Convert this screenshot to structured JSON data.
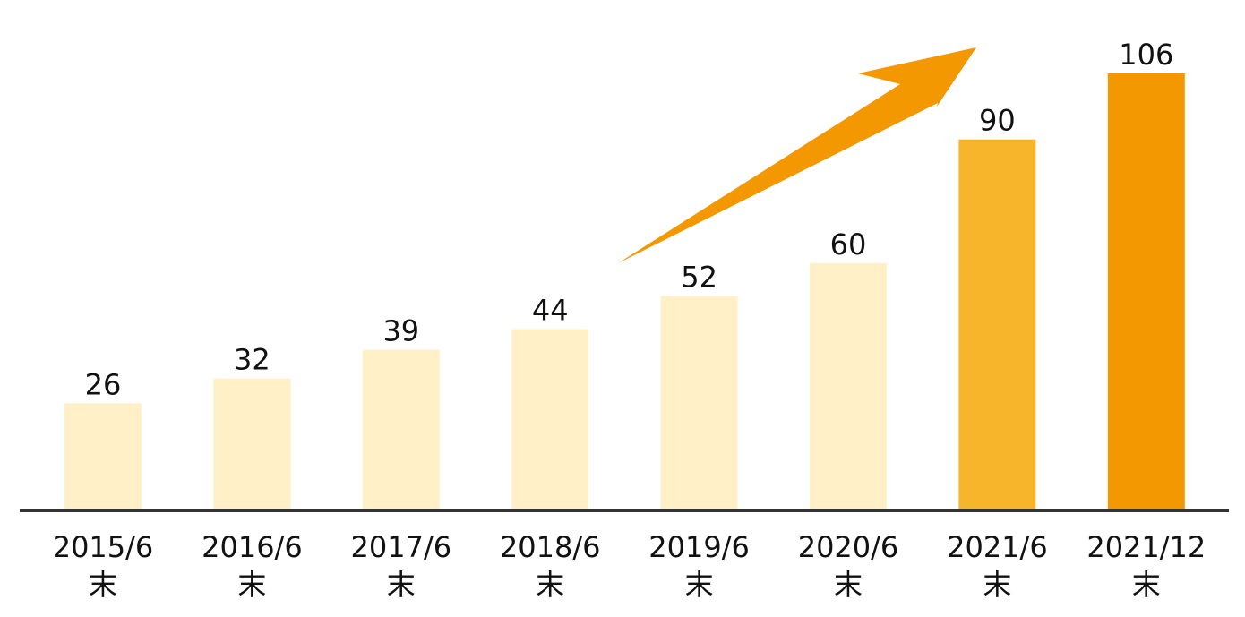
{
  "chart_data": {
    "type": "bar",
    "categories": [
      [
        "2015/6",
        "末"
      ],
      [
        "2016/6",
        "末"
      ],
      [
        "2017/6",
        "末"
      ],
      [
        "2018/6",
        "末"
      ],
      [
        "2019/6",
        "末"
      ],
      [
        "2020/6",
        "末"
      ],
      [
        "2021/6",
        "末"
      ],
      [
        "2021/12",
        "末"
      ]
    ],
    "values": [
      26,
      32,
      39,
      44,
      52,
      60,
      90,
      106
    ],
    "bar_colors": [
      "#fff0c8",
      "#fff0c8",
      "#fff0c8",
      "#fff0c8",
      "#fff0c8",
      "#fff0c8",
      "#f7b52c",
      "#f39800"
    ],
    "ylim": [
      0,
      106
    ],
    "grid": false,
    "axis_color": "#333333",
    "annotation": {
      "type": "arrow",
      "color": "#f39800",
      "direction": "up-right"
    }
  }
}
